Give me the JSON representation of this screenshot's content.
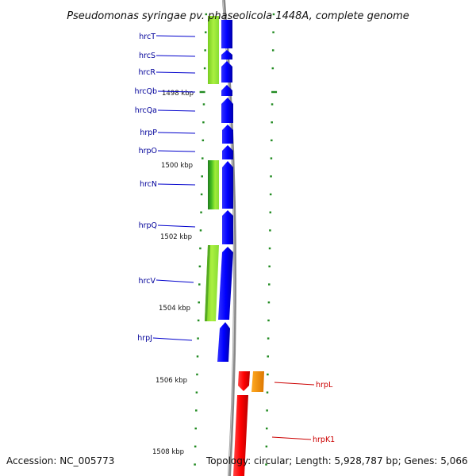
{
  "title": "Pseudomonas syringae pv. phaseolicola 1448A, complete genome",
  "footer": {
    "accession": "Accession: NC_005773",
    "topology": "Topology: circular; Length: 5,928,787 bp; Genes: 5,066"
  },
  "colors": {
    "forward_genes": "#0000ff",
    "reverse_genes": "#ff0000",
    "feature_green": "#99ee33",
    "feature_dark_green": "#228b22",
    "feature_orange": "#ff9900",
    "backbone": "#888888",
    "ticks": "#228b22",
    "label_blue": "#000099",
    "label_red": "#cc0000"
  },
  "kbp_labels": [
    "1498 kbp",
    "1500 kbp",
    "1502 kbp",
    "1504 kbp",
    "1506 kbp",
    "1508 kbp"
  ],
  "genes_left": [
    "hrcT",
    "hrcS",
    "hrcR",
    "hrcQb",
    "hrcQa",
    "hrpP",
    "hrpO",
    "hrcN",
    "hrpQ",
    "hrcV",
    "hrpJ"
  ],
  "genes_right": [
    "hrpL",
    "hrpK1"
  ]
}
